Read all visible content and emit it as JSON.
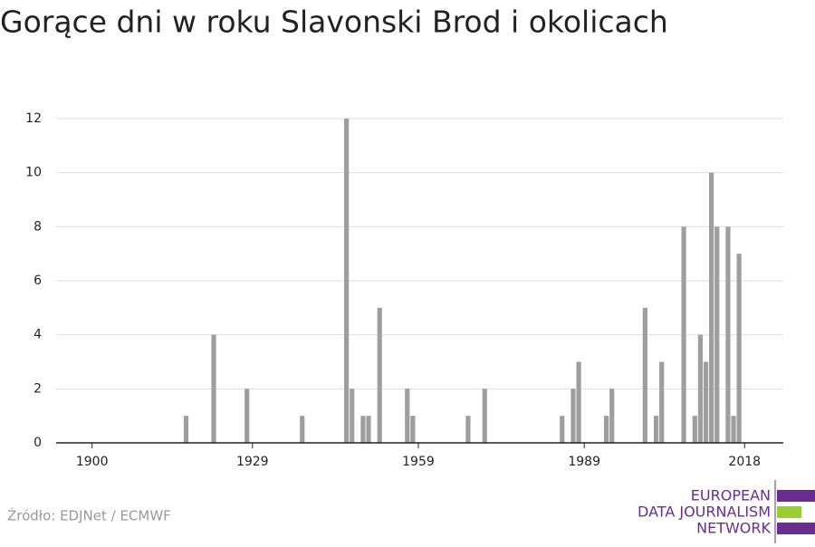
{
  "chart_data": {
    "type": "bar",
    "title": "Gorące dni w roku Slavonski Brod i okolicach",
    "x": [
      1917,
      1922,
      1928,
      1938,
      1946,
      1947,
      1949,
      1950,
      1952,
      1957,
      1958,
      1968,
      1971,
      1985,
      1987,
      1988,
      1993,
      1994,
      2000,
      2002,
      2003,
      2007,
      2009,
      2010,
      2011,
      2012,
      2013,
      2015,
      2016,
      2017
    ],
    "values": [
      1,
      4,
      2,
      1,
      12,
      2,
      1,
      1,
      5,
      2,
      1,
      1,
      2,
      1,
      2,
      3,
      1,
      2,
      5,
      1,
      3,
      8,
      1,
      4,
      3,
      10,
      8,
      8,
      1,
      7
    ],
    "color": "#9e9e9e",
    "xlim": [
      1893.5,
      2025
    ],
    "xticks": [
      1900,
      1929,
      1959,
      1989,
      2018
    ],
    "ylim": [
      0,
      12
    ],
    "yticks": [
      0,
      2,
      4,
      6,
      8,
      10,
      12
    ],
    "grid": true,
    "source": "Źródło: EDJNet / ECMWF",
    "logo": [
      "EUROPEAN",
      "DATA JOURNALISM",
      "NETWORK"
    ]
  }
}
